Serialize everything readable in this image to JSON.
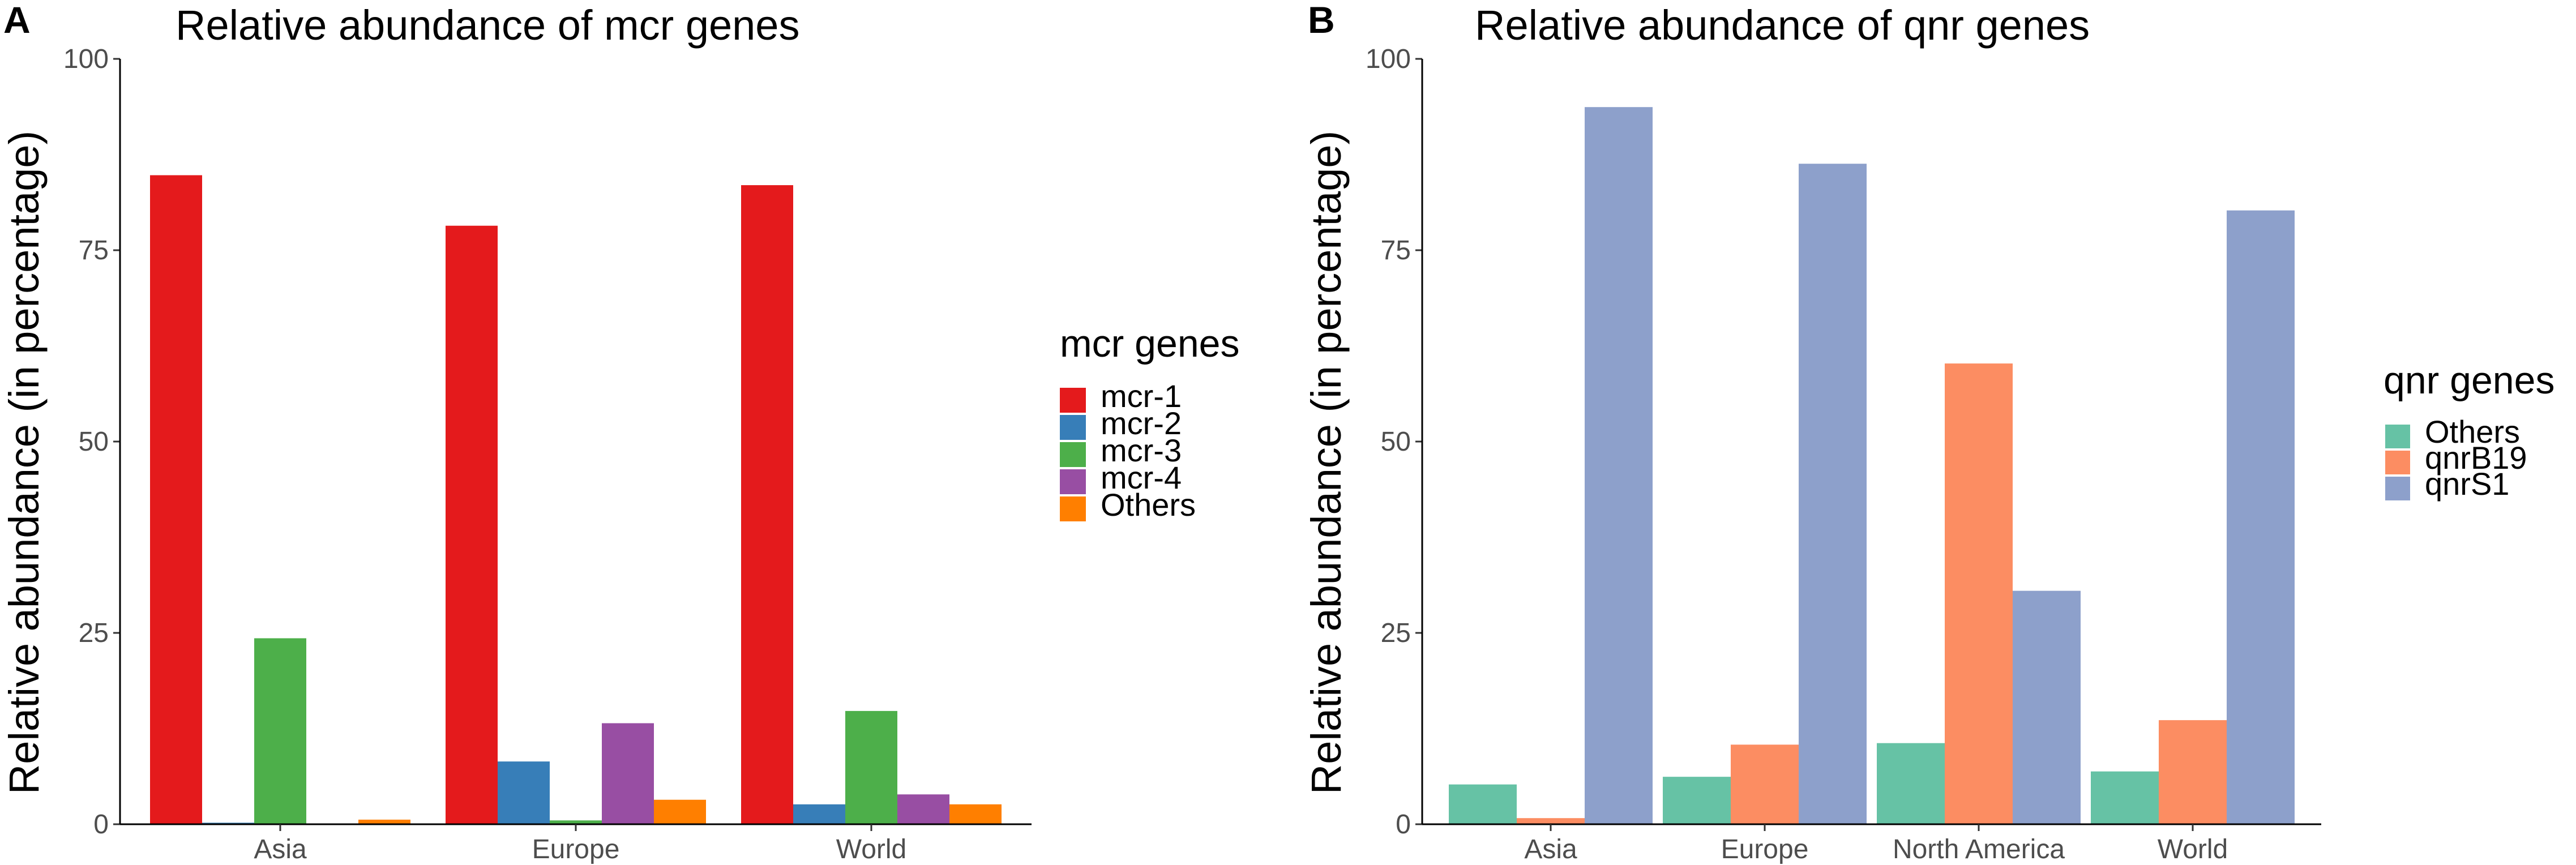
{
  "chart_data": [
    {
      "panel": "A",
      "type": "bar",
      "title": "Relative abundance of mcr genes",
      "xlabel": "",
      "ylabel": "Relative abundance (in percentage)",
      "ylim": [
        0,
        100
      ],
      "yticks": [
        0,
        25,
        50,
        75,
        100
      ],
      "ytick_labels": [
        "0",
        "25",
        "50",
        "75",
        "100"
      ],
      "grid": false,
      "legend_position": "right",
      "legend_title": "mcr genes",
      "categories": [
        "Asia",
        "Europe",
        "World"
      ],
      "series": [
        {
          "name": "mcr-1",
          "color": "#E41A1C",
          "values": [
            84.8,
            78.2,
            83.5
          ]
        },
        {
          "name": "mcr-2",
          "color": "#377EB8",
          "values": [
            0.2,
            8.2,
            2.6
          ]
        },
        {
          "name": "mcr-3",
          "color": "#4DAF4A",
          "values": [
            24.3,
            0.5,
            14.8
          ]
        },
        {
          "name": "mcr-4",
          "color": "#984EA3",
          "values": [
            0.0,
            13.2,
            3.9
          ]
        },
        {
          "name": "Others",
          "color": "#FF7F00",
          "values": [
            0.6,
            3.2,
            2.6
          ]
        }
      ]
    },
    {
      "panel": "B",
      "type": "bar",
      "title": "Relative abundance of qnr genes",
      "xlabel": "",
      "ylabel": "Relative abundance (in percentage)",
      "ylim": [
        0,
        100
      ],
      "yticks": [
        0,
        25,
        50,
        75,
        100
      ],
      "ytick_labels": [
        "0",
        "25",
        "50",
        "75",
        "100"
      ],
      "grid": false,
      "legend_position": "right",
      "legend_title": "qnr genes",
      "categories": [
        "Asia",
        "Europe",
        "North America",
        "World"
      ],
      "series": [
        {
          "name": "Others",
          "color": "#66C2A5",
          "values": [
            5.2,
            6.2,
            10.6,
            6.9
          ]
        },
        {
          "name": "qnrB19",
          "color": "#FC8D62",
          "values": [
            0.8,
            10.4,
            60.2,
            13.6
          ]
        },
        {
          "name": "qnrS1",
          "color": "#8DA0CB",
          "values": [
            93.7,
            86.3,
            30.5,
            80.2
          ]
        }
      ]
    }
  ]
}
